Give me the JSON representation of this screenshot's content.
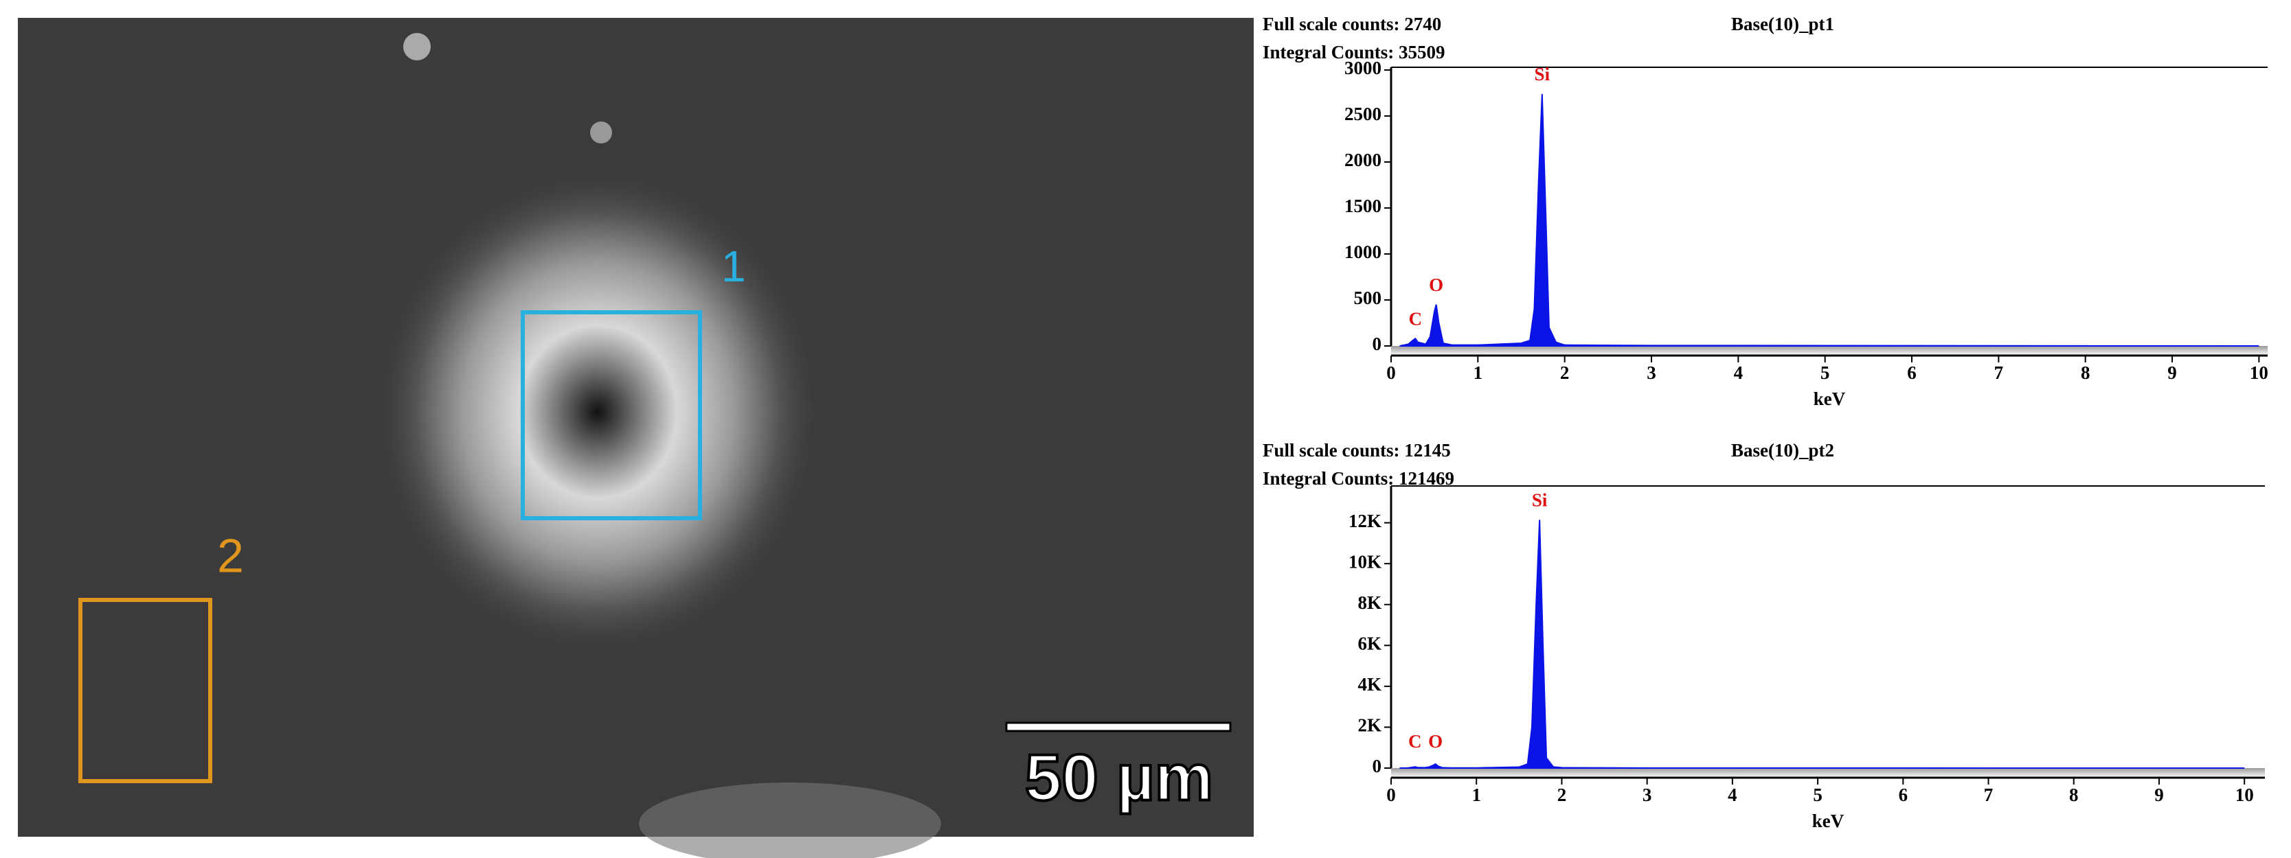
{
  "image": {
    "region_labels": [
      "1",
      "2"
    ],
    "scale_bar": "50 µm"
  },
  "chart_data": [
    {
      "type": "area",
      "title": "Base(10)_pt1",
      "info": [
        "Full scale counts: 2740",
        "Integral Counts: 35509"
      ],
      "xlabel": "keV",
      "x": [
        0.1,
        0.2,
        0.25,
        0.28,
        0.31,
        0.4,
        0.45,
        0.5,
        0.52,
        0.55,
        0.6,
        0.7,
        1.0,
        1.5,
        1.6,
        1.65,
        1.7,
        1.74,
        1.78,
        1.82,
        1.9,
        2.0,
        3,
        10
      ],
      "series": [
        {
          "color": "#0a14e6",
          "values": [
            0,
            20,
            60,
            80,
            40,
            20,
            100,
            380,
            450,
            250,
            30,
            10,
            10,
            30,
            60,
            400,
            1800,
            2740,
            1500,
            200,
            40,
            10,
            5,
            0
          ]
        }
      ],
      "annotations": [
        {
          "text": "C",
          "x": 0.28
        },
        {
          "text": "O",
          "x": 0.52
        },
        {
          "text": "Si",
          "x": 1.74
        }
      ],
      "xlim": [
        0,
        10.1
      ],
      "xticks": [
        0,
        1,
        2,
        3,
        4,
        5,
        6,
        7,
        8,
        9,
        10
      ],
      "ylim": [
        0,
        3030
      ],
      "yticks": [
        0,
        500,
        1000,
        1500,
        2000,
        2500,
        3000
      ]
    },
    {
      "type": "area",
      "title": "Base(10)_pt2",
      "info": [
        "Full scale counts: 12145",
        "Integral Counts: 121469"
      ],
      "xlabel": "keV",
      "x": [
        0.1,
        0.2,
        0.25,
        0.28,
        0.31,
        0.4,
        0.45,
        0.5,
        0.52,
        0.55,
        0.6,
        0.7,
        1.0,
        1.5,
        1.6,
        1.65,
        1.7,
        1.74,
        1.78,
        1.82,
        1.9,
        2.0,
        3,
        10
      ],
      "series": [
        {
          "color": "#0a14e6",
          "values": [
            0,
            10,
            40,
            60,
            30,
            20,
            60,
            150,
            200,
            100,
            20,
            10,
            10,
            50,
            200,
            2000,
            8000,
            12145,
            6000,
            500,
            60,
            20,
            5,
            0
          ]
        }
      ],
      "annotations": [
        {
          "text": "C",
          "x": 0.28
        },
        {
          "text": "O",
          "x": 0.52
        },
        {
          "text": "Si",
          "x": 1.74
        }
      ],
      "xlim": [
        0,
        10.24
      ],
      "xticks": [
        0,
        1,
        2,
        3,
        4,
        5,
        6,
        7,
        8,
        9,
        10
      ],
      "ylim": [
        0,
        13800
      ],
      "yticks": [
        0,
        {
          "value": 2000,
          "label": "2K"
        },
        {
          "value": 4000,
          "label": "4K"
        },
        {
          "value": 6000,
          "label": "6K"
        },
        {
          "value": 8000,
          "label": "8K"
        },
        {
          "value": 10000,
          "label": "10K"
        },
        {
          "value": 12000,
          "label": "12K"
        }
      ]
    }
  ]
}
